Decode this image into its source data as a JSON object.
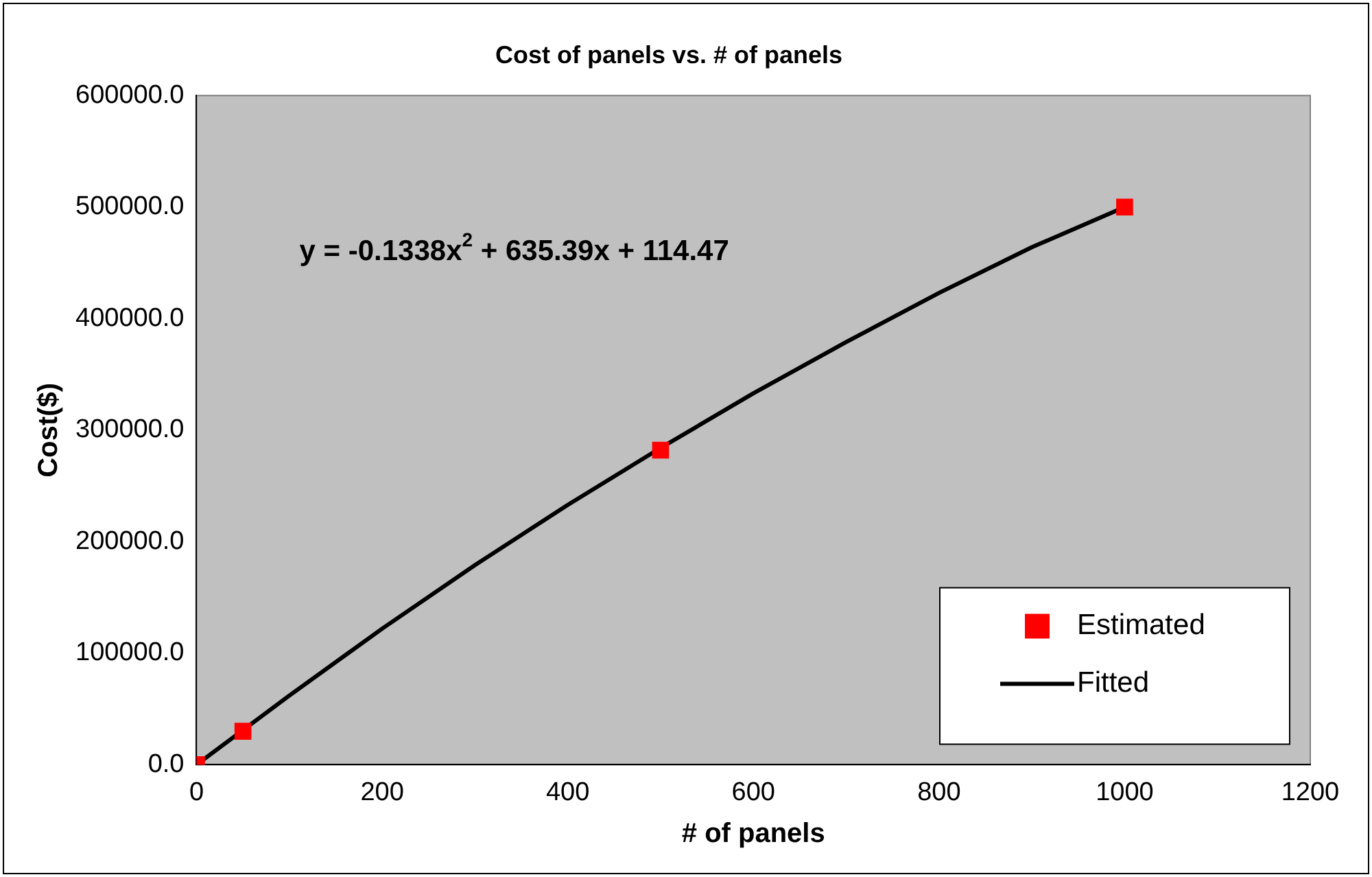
{
  "chart_data": {
    "type": "scatter",
    "title": "Cost of panels vs. # of panels",
    "xlabel": "# of panels",
    "ylabel": "Cost($)",
    "annotations": [
      "y = -0.1338x$^{2}$ + 635.39x + 114.47"
    ],
    "series": [
      {
        "name": "Estimated",
        "color": "#ff0000",
        "x": [
          0,
          50,
          500,
          1000
        ],
        "values": [
          0,
          30000,
          282000,
          500000
        ]
      },
      {
        "name": "Fitted",
        "type": "line",
        "marker": "none",
        "color": "#000000",
        "x": [
          0,
          100,
          200,
          300,
          400,
          500,
          600,
          700,
          800,
          900,
          1000
        ],
        "values": [
          0,
          62000,
          122000,
          179000,
          233000,
          284000,
          333000,
          379000,
          423000,
          464000,
          500000
        ]
      }
    ],
    "xlim": [
      0,
      1200
    ],
    "xticks": [
      0,
      200,
      400,
      600,
      800,
      1000,
      1200
    ],
    "ylim": [
      0,
      600000
    ],
    "yticks": [
      {
        "value": 0,
        "label": "0.0"
      },
      {
        "value": 100000,
        "label": "100000.0"
      },
      {
        "value": 200000,
        "label": "200000.0"
      },
      {
        "value": 300000,
        "label": "300000.0"
      },
      {
        "value": 400000,
        "label": "400000.0"
      },
      {
        "value": 500000,
        "label": "500000.0"
      },
      {
        "value": 600000,
        "label": "600000.0"
      }
    ],
    "marker": "square",
    "legend": "bottom right"
  }
}
